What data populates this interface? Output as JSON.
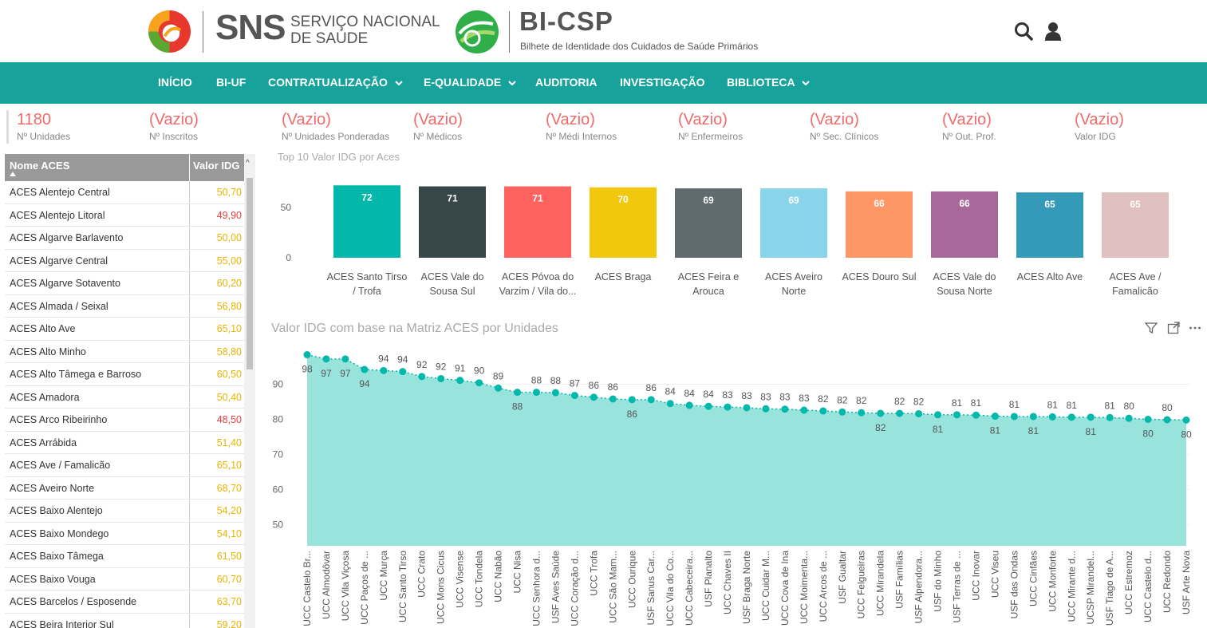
{
  "header": {
    "sns_logo_text": "SNS",
    "sns_subtitle_line1": "SERVIÇO NACIONAL",
    "sns_subtitle_line2": "DE SAÚDE",
    "bi_title": "BI-CSP",
    "bi_subtitle": "Bilhete de Identidade dos Cuidados de Saúde Primários",
    "icons": [
      "search-icon",
      "user-icon"
    ]
  },
  "nav": {
    "items": [
      {
        "label": "INÍCIO",
        "dropdown": false
      },
      {
        "label": "BI-UF",
        "dropdown": false
      },
      {
        "label": "CONTRATUALIZAÇÃO",
        "dropdown": true
      },
      {
        "label": "E-QUALIDADE",
        "dropdown": true
      },
      {
        "label": "AUDITORIA",
        "dropdown": false
      },
      {
        "label": "INVESTIGAÇÃO",
        "dropdown": false
      },
      {
        "label": "BIBLIOTECA",
        "dropdown": true
      }
    ]
  },
  "kpis": [
    {
      "value": "1180",
      "label": "Nº Unidades"
    },
    {
      "value": "(Vazio)",
      "label": "Nº Inscritos"
    },
    {
      "value": "(Vazio)",
      "label": "Nº Unidades Ponderadas"
    },
    {
      "value": "(Vazio)",
      "label": "Nº Médicos"
    },
    {
      "value": "(Vazio)",
      "label": "Nº Médi Internos"
    },
    {
      "value": "(Vazio)",
      "label": "Nº Enfermeiros"
    },
    {
      "value": "(Vazio)",
      "label": "Nº Sec. Clínicos"
    },
    {
      "value": "(Vazio)",
      "label": "Nº Out. Prof."
    },
    {
      "value": "(Vazio)",
      "label": "Valor IDG"
    }
  ],
  "table": {
    "columns": [
      "Nome ACES",
      "Valor IDG"
    ],
    "rows": [
      {
        "name": "ACES Alentejo Central",
        "value": "50,70",
        "color": "#e8b400"
      },
      {
        "name": "ACES Alentejo Litoral",
        "value": "49,90",
        "color": "#e84040"
      },
      {
        "name": "ACES Algarve Barlavento",
        "value": "50,00",
        "color": "#e8b400"
      },
      {
        "name": "ACES Algarve Central",
        "value": "55,00",
        "color": "#e8b400"
      },
      {
        "name": "ACES Algarve Sotavento",
        "value": "60,20",
        "color": "#e8b400"
      },
      {
        "name": "ACES Almada / Seixal",
        "value": "56,80",
        "color": "#e8b400"
      },
      {
        "name": "ACES Alto Ave",
        "value": "65,10",
        "color": "#e8b400"
      },
      {
        "name": "ACES Alto Minho",
        "value": "58,80",
        "color": "#e8b400"
      },
      {
        "name": "ACES Alto Tâmega e Barroso",
        "value": "60,50",
        "color": "#e8b400"
      },
      {
        "name": "ACES Amadora",
        "value": "50,40",
        "color": "#e8b400"
      },
      {
        "name": "ACES Arco Ribeirinho",
        "value": "48,50",
        "color": "#e84040"
      },
      {
        "name": "ACES Arrábida",
        "value": "51,40",
        "color": "#e8b400"
      },
      {
        "name": "ACES Ave / Famalicão",
        "value": "65,10",
        "color": "#e8b400"
      },
      {
        "name": "ACES Aveiro Norte",
        "value": "68,70",
        "color": "#e8b400"
      },
      {
        "name": "ACES Baixo Alentejo",
        "value": "54,20",
        "color": "#e8b400"
      },
      {
        "name": "ACES Baixo Mondego",
        "value": "54,10",
        "color": "#e8b400"
      },
      {
        "name": "ACES Baixo Tâmega",
        "value": "61,50",
        "color": "#e8b400"
      },
      {
        "name": "ACES Baixo Vouga",
        "value": "60,70",
        "color": "#e8b400"
      },
      {
        "name": "ACES Barcelos / Esposende",
        "value": "63,70",
        "color": "#e8b400"
      },
      {
        "name": "ACES Beira Interior Sul",
        "value": "59,20",
        "color": "#e8b400"
      }
    ]
  },
  "chart_data": [
    {
      "type": "bar",
      "title": "Top 10 Valor IDG por Aces",
      "xlabel": "",
      "ylabel": "",
      "ylim": [
        0,
        75
      ],
      "yticks": [
        "0",
        "50"
      ],
      "grid": false,
      "categories": [
        [
          "ACES Santo Tirso",
          "/ Trofa"
        ],
        [
          "ACES Vale do",
          "Sousa Sul"
        ],
        [
          "ACES Póvoa do",
          "Varzim / Vila do..."
        ],
        [
          "ACES Braga"
        ],
        [
          "ACES Feira e",
          "Arouca"
        ],
        [
          "ACES Aveiro",
          "Norte"
        ],
        [
          "ACES Douro Sul"
        ],
        [
          "ACES Vale do",
          "Sousa Norte"
        ],
        [
          "ACES Alto Ave"
        ],
        [
          "ACES Ave /",
          "Famalicão"
        ]
      ],
      "values": [
        72,
        71,
        71,
        70,
        69,
        69,
        66,
        66,
        65,
        65
      ],
      "colors": [
        "#01b8aa",
        "#374649",
        "#fd625e",
        "#f2c80f",
        "#5f6b6d",
        "#8ad4eb",
        "#fe9666",
        "#a66999",
        "#3599b8",
        "#dfbfbf"
      ]
    },
    {
      "type": "area",
      "title": "Valor IDG com base na Matriz ACES por Unidades",
      "xlabel": "",
      "ylabel": "",
      "ylim": [
        45,
        100
      ],
      "yticks": [
        "50",
        "60",
        "70",
        "80",
        "90"
      ],
      "grid": true,
      "color": "#01b8aa",
      "fill": "#99e3dd",
      "categories": [
        "UCC Castelo Br...",
        "UCC Almodôvar",
        "UCC Vila Viçosa",
        "UCC Paços de ...",
        "UCC Murça",
        "UCC Santo Tirso",
        "UCC Crato",
        "UCC Mons Cicus",
        "UCC Visense",
        "UCC Tondela",
        "UCC Nabão",
        "UCC Nisa",
        "UCC Senhora d...",
        "USF Aves Saúde",
        "UCC Coração d...",
        "UCC Trofa",
        "UCC São Mam...",
        "UCC Ourique",
        "USF Sanus Car...",
        "UCC Vila do Co...",
        "UCC Cabeceira...",
        "USF Planalto",
        "UCC Chaves II",
        "USF Braga Norte",
        "UCC Cuidar M...",
        "UCC Cova de Ina",
        "UCC Moimenta...",
        "UCC Arcos de ...",
        "USF Gualtar",
        "UCC Felgueiras",
        "UCC Mirandela",
        "USF Famílias",
        "USF Alpendora...",
        "USF do Minho",
        "USF Terras de ...",
        "UCC Inovar",
        "UCC Viseu",
        "USF das Ondas",
        "UCC Cinfães",
        "UCC Monforte",
        "UCC Mirante d...",
        "UCSP Mirandel...",
        "USF Tiago de A...",
        "UCC Estremoz",
        "UCC Castelo d...",
        "UCC Redondo",
        "USF Arte Nova"
      ],
      "values": [
        98.4,
        97.2,
        97.2,
        94.2,
        93.9,
        93.6,
        92.2,
        91.6,
        91.1,
        90.4,
        88.9,
        87.7,
        87.7,
        87.6,
        86.8,
        86.3,
        85.8,
        85.6,
        85.6,
        84.5,
        84.0,
        83.7,
        83.5,
        83.3,
        83.0,
        82.9,
        82.6,
        82.4,
        82.1,
        81.9,
        81.7,
        81.7,
        81.6,
        81.3,
        81.3,
        81.2,
        80.9,
        80.8,
        80.8,
        80.7,
        80.6,
        80.6,
        80.5,
        80.3,
        80.0,
        79.9,
        79.8
      ],
      "labels": [
        "98",
        "97",
        "97",
        "94",
        "94",
        "94",
        "92",
        "92",
        "91",
        "90",
        "89",
        "88",
        "88",
        "88",
        "87",
        "86",
        "86",
        "86",
        "86",
        "84",
        "84",
        "84",
        "83",
        "83",
        "83",
        "83",
        "83",
        "82",
        "82",
        "82",
        "82",
        "82",
        "82",
        "81",
        "81",
        "81",
        "81",
        "81",
        "81",
        "81",
        "81",
        "81",
        "81",
        "80",
        "80",
        "80",
        "80"
      ],
      "label_below": [
        true,
        true,
        true,
        true,
        false,
        false,
        false,
        false,
        false,
        false,
        false,
        true,
        false,
        false,
        false,
        false,
        false,
        true,
        false,
        false,
        false,
        false,
        false,
        false,
        false,
        false,
        false,
        false,
        false,
        false,
        true,
        false,
        false,
        true,
        false,
        false,
        true,
        false,
        true,
        false,
        false,
        true,
        false,
        false,
        true,
        false,
        true
      ]
    }
  ]
}
